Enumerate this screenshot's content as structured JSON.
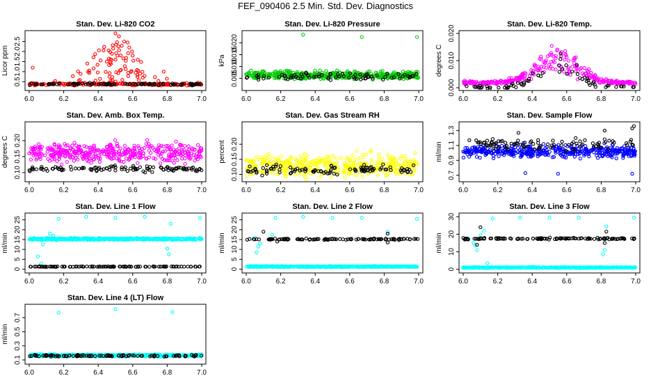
{
  "title": "FEF_090406  2.5 Min. Std. Dev. Diagnostics",
  "colors": {
    "black": "#000000",
    "red": "#ff0000",
    "green": "#00cc00",
    "magenta": "#ff00ff",
    "yellow": "#ffff00",
    "blue": "#0000ff",
    "cyan": "#00ffff"
  },
  "chart_data": [
    {
      "type": "scatter",
      "title": "Stan. Dev. Li-820 CO2",
      "ylabel": "Licor ppm",
      "xlim": [
        6.0,
        7.0
      ],
      "ylim": [
        0.2,
        2.9
      ],
      "xticks": [
        "6.0",
        "6.2",
        "6.4",
        "6.6",
        "6.8",
        "7.0"
      ],
      "yticks": [
        {
          "v": 0.5,
          "label": "0.5"
        },
        {
          "v": 1.0,
          "label": "1.0"
        },
        {
          "v": 1.5,
          "label": "1.5"
        },
        {
          "v": 2.0,
          "label": "2.0"
        },
        {
          "v": 2.5,
          "label": "2.5"
        }
      ],
      "series": [
        {
          "name": "Li-820 CO2",
          "color": "red",
          "n": 180,
          "base": 0.38,
          "noise": 0.06,
          "spikes": 80,
          "spike_min": 0.5,
          "spike_max": 2.6,
          "spike_center": 6.5,
          "spike_width": 0.15,
          "points": [
            [
              6.02,
              1.2
            ],
            [
              6.5,
              2.9
            ],
            [
              6.52,
              2.75
            ],
            [
              6.55,
              2.5
            ],
            [
              6.57,
              2.45
            ],
            [
              6.58,
              2.2
            ],
            [
              6.6,
              1.8
            ],
            [
              6.45,
              1.5
            ],
            [
              6.78,
              1.0
            ]
          ]
        },
        {
          "name": "black",
          "color": "black",
          "n": 90,
          "base": 0.38,
          "noise": 0.05
        }
      ]
    },
    {
      "type": "scatter",
      "title": "Stan. Dev. Li-820 Pressure",
      "ylabel": "kPa",
      "xlim": [
        6.0,
        7.0
      ],
      "ylim": [
        0.001,
        0.024
      ],
      "xticks": [
        "6.0",
        "6.2",
        "6.4",
        "6.6",
        "6.8",
        "7.0"
      ],
      "yticks": [
        {
          "v": 0.005,
          "label": "0.005"
        },
        {
          "v": 0.01,
          "label": "0.010"
        },
        {
          "v": 0.015,
          "label": "0.015"
        },
        {
          "v": 0.02,
          "label": "0.020"
        }
      ],
      "series": [
        {
          "name": "Li-820 Pressure",
          "color": "green",
          "n": 420,
          "base": 0.0063,
          "noise": 0.0016,
          "points": [
            [
              6.33,
              0.0235
            ],
            [
              6.67,
              0.0225
            ],
            [
              6.99,
              0.0225
            ]
          ]
        },
        {
          "name": "black",
          "color": "black",
          "n": 80,
          "base": 0.0058,
          "noise": 0.0013
        }
      ]
    },
    {
      "type": "scatter",
      "title": "Stan. Dev. Li-820 Temp.",
      "ylabel": "degrees C",
      "xlim": [
        6.0,
        7.0
      ],
      "ylim": [
        0.0,
        0.02
      ],
      "xticks": [
        "6.0",
        "6.2",
        "6.4",
        "6.6",
        "6.8",
        "7.0"
      ],
      "yticks": [
        {
          "v": 0.0,
          "label": "0.000"
        },
        {
          "v": 0.01,
          "label": "0.010"
        },
        {
          "v": 0.02,
          "label": "0.020"
        }
      ],
      "series": [
        {
          "name": "Li-820 Temp.",
          "color": "magenta",
          "n": 320,
          "profile": "bell",
          "base": 0.0018,
          "peak": 0.009,
          "noise": 0.0022,
          "center": 6.55,
          "width": 0.17,
          "floor": 0.0,
          "points": [
            [
              6.02,
              0.0018
            ],
            [
              6.95,
              0.0019
            ]
          ]
        },
        {
          "name": "black",
          "color": "black",
          "n": 70,
          "profile": "bell",
          "base": 0.0002,
          "peak": 0.008,
          "noise": 0.002,
          "center": 6.55,
          "width": 0.16,
          "floor": 0.0
        }
      ]
    },
    {
      "type": "scatter",
      "title": "Stan. Dev. Amb. Box Temp.",
      "ylabel": "degrees C",
      "xlim": [
        6.0,
        7.0
      ],
      "ylim": [
        0.08,
        0.25
      ],
      "xticks": [
        "6.0",
        "6.2",
        "6.4",
        "6.6",
        "6.8",
        "7.0"
      ],
      "yticks": [
        {
          "v": 0.1,
          "label": "0.10"
        },
        {
          "v": 0.15,
          "label": "0.15"
        },
        {
          "v": 0.2,
          "label": "0.20"
        }
      ],
      "series": [
        {
          "name": "Amb. Box Temp.",
          "color": "magenta",
          "n": 420,
          "base": 0.162,
          "noise": 0.028
        },
        {
          "name": "black",
          "color": "black",
          "n": 110,
          "base": 0.112,
          "noise": 0.009
        }
      ]
    },
    {
      "type": "scatter",
      "title": "Stan. Dev. Gas Stream RH",
      "ylabel": "percent",
      "xlim": [
        6.0,
        7.0
      ],
      "ylim": [
        0.085,
        0.265
      ],
      "xticks": [
        "6.0",
        "6.2",
        "6.4",
        "6.6",
        "6.8",
        "7.0"
      ],
      "yticks": [
        {
          "v": 0.1,
          "label": "0.10"
        },
        {
          "v": 0.15,
          "label": "0.15"
        },
        {
          "v": 0.2,
          "label": "0.20"
        }
      ],
      "series": [
        {
          "name": "Gas Stream RH",
          "color": "yellow",
          "n": 420,
          "base": 0.13,
          "noise": 0.035
        },
        {
          "name": "black",
          "color": "black",
          "n": 100,
          "base": 0.115,
          "noise": 0.016
        }
      ]
    },
    {
      "type": "scatter",
      "title": "Stan. Dev. Sample Flow",
      "ylabel": "ml/min",
      "xlim": [
        6.0,
        7.0
      ],
      "ylim": [
        0.65,
        1.38
      ],
      "xticks": [
        "6.0",
        "6.2",
        "6.4",
        "6.6",
        "6.8",
        "7.0"
      ],
      "yticks": [
        {
          "v": 0.7,
          "label": "0.7"
        },
        {
          "v": 0.9,
          "label": "0.9"
        },
        {
          "v": 1.1,
          "label": "1.1"
        },
        {
          "v": 1.3,
          "label": "1.3"
        }
      ],
      "series": [
        {
          "name": "Sample Flow",
          "color": "blue",
          "n": 420,
          "base": 1.02,
          "noise": 0.08,
          "points": [
            [
              6.98,
              0.72
            ],
            [
              6.36,
              0.73
            ],
            [
              6.55,
              0.72
            ]
          ]
        },
        {
          "name": "black",
          "color": "black",
          "n": 90,
          "base": 1.12,
          "noise": 0.07,
          "points": [
            [
              6.99,
              1.36
            ],
            [
              6.98,
              1.33
            ],
            [
              6.82,
              1.3
            ],
            [
              6.32,
              1.27
            ]
          ]
        }
      ]
    },
    {
      "type": "scatter",
      "title": "Stan. Dev. Line 1 Flow",
      "ylabel": "ml/min",
      "xlim": [
        6.0,
        7.0
      ],
      "ylim": [
        -0.5,
        27.0
      ],
      "xticks": [
        "6.0",
        "6.2",
        "6.4",
        "6.6",
        "6.8",
        "7.0"
      ],
      "yticks": [
        {
          "v": 0,
          "label": "0"
        },
        {
          "v": 5,
          "label": "5"
        },
        {
          "v": 10,
          "label": "10"
        },
        {
          "v": 15,
          "label": "15"
        },
        {
          "v": 20,
          "label": "20"
        },
        {
          "v": 25,
          "label": "25"
        }
      ],
      "series": [
        {
          "name": "Line 1 Flow",
          "color": "cyan",
          "n": 520,
          "base": 15.3,
          "noise": 0.45,
          "points": [
            [
              6.05,
              6.5
            ],
            [
              6.07,
              3.0
            ],
            [
              6.08,
              12.5
            ],
            [
              6.1,
              15.8
            ],
            [
              6.12,
              18.0
            ],
            [
              6.14,
              17.0
            ],
            [
              6.17,
              25.5
            ],
            [
              6.33,
              26.5
            ],
            [
              6.5,
              26.0
            ],
            [
              6.67,
              26.5
            ],
            [
              6.82,
              23.0
            ],
            [
              6.81,
              7.5
            ],
            [
              6.8,
              10.5
            ],
            [
              6.99,
              26.0
            ]
          ]
        },
        {
          "name": "black",
          "color": "black",
          "n": 110,
          "base": 1.3,
          "noise": 0.12
        }
      ]
    },
    {
      "type": "scatter",
      "title": "Stan. Dev. Line 2 Flow",
      "ylabel": "ml/min",
      "xlim": [
        6.0,
        7.0
      ],
      "ylim": [
        -0.5,
        27.0
      ],
      "xticks": [
        "6.0",
        "6.2",
        "6.4",
        "6.6",
        "6.8",
        "7.0"
      ],
      "yticks": [
        {
          "v": 0,
          "label": "0"
        },
        {
          "v": 5,
          "label": "5"
        },
        {
          "v": 10,
          "label": "10"
        },
        {
          "v": 15,
          "label": "15"
        },
        {
          "v": 20,
          "label": "20"
        },
        {
          "v": 25,
          "label": "25"
        }
      ],
      "series": [
        {
          "name": "Line 2 Flow",
          "color": "cyan",
          "n": 520,
          "base": 1.3,
          "noise": 0.25,
          "points": [
            [
              6.06,
              8.5
            ],
            [
              6.07,
              11.5
            ],
            [
              6.08,
              13.0
            ],
            [
              6.05,
              16.0
            ],
            [
              6.15,
              17.5
            ],
            [
              6.17,
              26.0
            ],
            [
              6.33,
              26.5
            ],
            [
              6.5,
              26.0
            ],
            [
              6.67,
              26.0
            ],
            [
              6.82,
              19.0
            ],
            [
              6.99,
              25.5
            ]
          ]
        },
        {
          "name": "black",
          "color": "black",
          "n": 110,
          "base": 15.2,
          "noise": 0.35,
          "points": [
            [
              6.1,
              19.0
            ],
            [
              6.82,
              18.0
            ],
            [
              6.82,
              13.5
            ],
            [
              6.18,
              14.0
            ]
          ]
        }
      ]
    },
    {
      "type": "scatter",
      "title": "Stan. Dev. Line 3 Flow",
      "ylabel": "ml/min",
      "xlim": [
        6.0,
        7.0
      ],
      "ylim": [
        -0.5,
        30.5
      ],
      "xticks": [
        "6.0",
        "6.2",
        "6.4",
        "6.6",
        "6.8",
        "7.0"
      ],
      "yticks": [
        {
          "v": 0,
          "label": "0"
        },
        {
          "v": 10,
          "label": "10"
        },
        {
          "v": 20,
          "label": "20"
        },
        {
          "v": 30,
          "label": "30"
        }
      ],
      "series": [
        {
          "name": "Line 3 Flow",
          "color": "cyan",
          "n": 520,
          "base": 1.0,
          "noise": 0.25,
          "points": [
            [
              6.03,
              17.5
            ],
            [
              6.06,
              15.0
            ],
            [
              6.07,
              13.5
            ],
            [
              6.08,
              11.0
            ],
            [
              6.1,
              19.5
            ],
            [
              6.12,
              22.0
            ],
            [
              6.14,
              3.5
            ],
            [
              6.17,
              29.0
            ],
            [
              6.33,
              29.5
            ],
            [
              6.5,
              29.5
            ],
            [
              6.67,
              29.5
            ],
            [
              6.81,
              8.5
            ],
            [
              6.82,
              11.0
            ],
            [
              6.83,
              24.5
            ],
            [
              6.99,
              29.5
            ]
          ]
        },
        {
          "name": "black",
          "color": "black",
          "n": 120,
          "base": 17.5,
          "noise": 0.45,
          "points": [
            [
              6.1,
              24.0
            ],
            [
              6.08,
              14.0
            ],
            [
              6.82,
              15.0
            ],
            [
              6.83,
              21.5
            ]
          ]
        }
      ]
    },
    {
      "type": "scatter",
      "title": "Stan. Dev. Line 4 (LT) Flow",
      "ylabel": "ml/min",
      "xlim": [
        6.0,
        7.0
      ],
      "ylim": [
        0.08,
        0.85
      ],
      "xticks": [
        "6.0",
        "6.2",
        "6.4",
        "6.6",
        "6.8",
        "7.0"
      ],
      "yticks": [
        {
          "v": 0.1,
          "label": "0.1"
        },
        {
          "v": 0.3,
          "label": "0.3"
        },
        {
          "v": 0.5,
          "label": "0.5"
        },
        {
          "v": 0.7,
          "label": "0.7"
        }
      ],
      "series": [
        {
          "name": "Line 4 (LT) Flow",
          "color": "cyan",
          "n": 460,
          "base": 0.165,
          "noise": 0.015,
          "points": [
            [
              6.17,
              0.77
            ],
            [
              6.83,
              0.78
            ],
            [
              6.5,
              0.82
            ]
          ]
        },
        {
          "name": "black",
          "color": "black",
          "n": 100,
          "base": 0.16,
          "noise": 0.014
        }
      ]
    }
  ]
}
